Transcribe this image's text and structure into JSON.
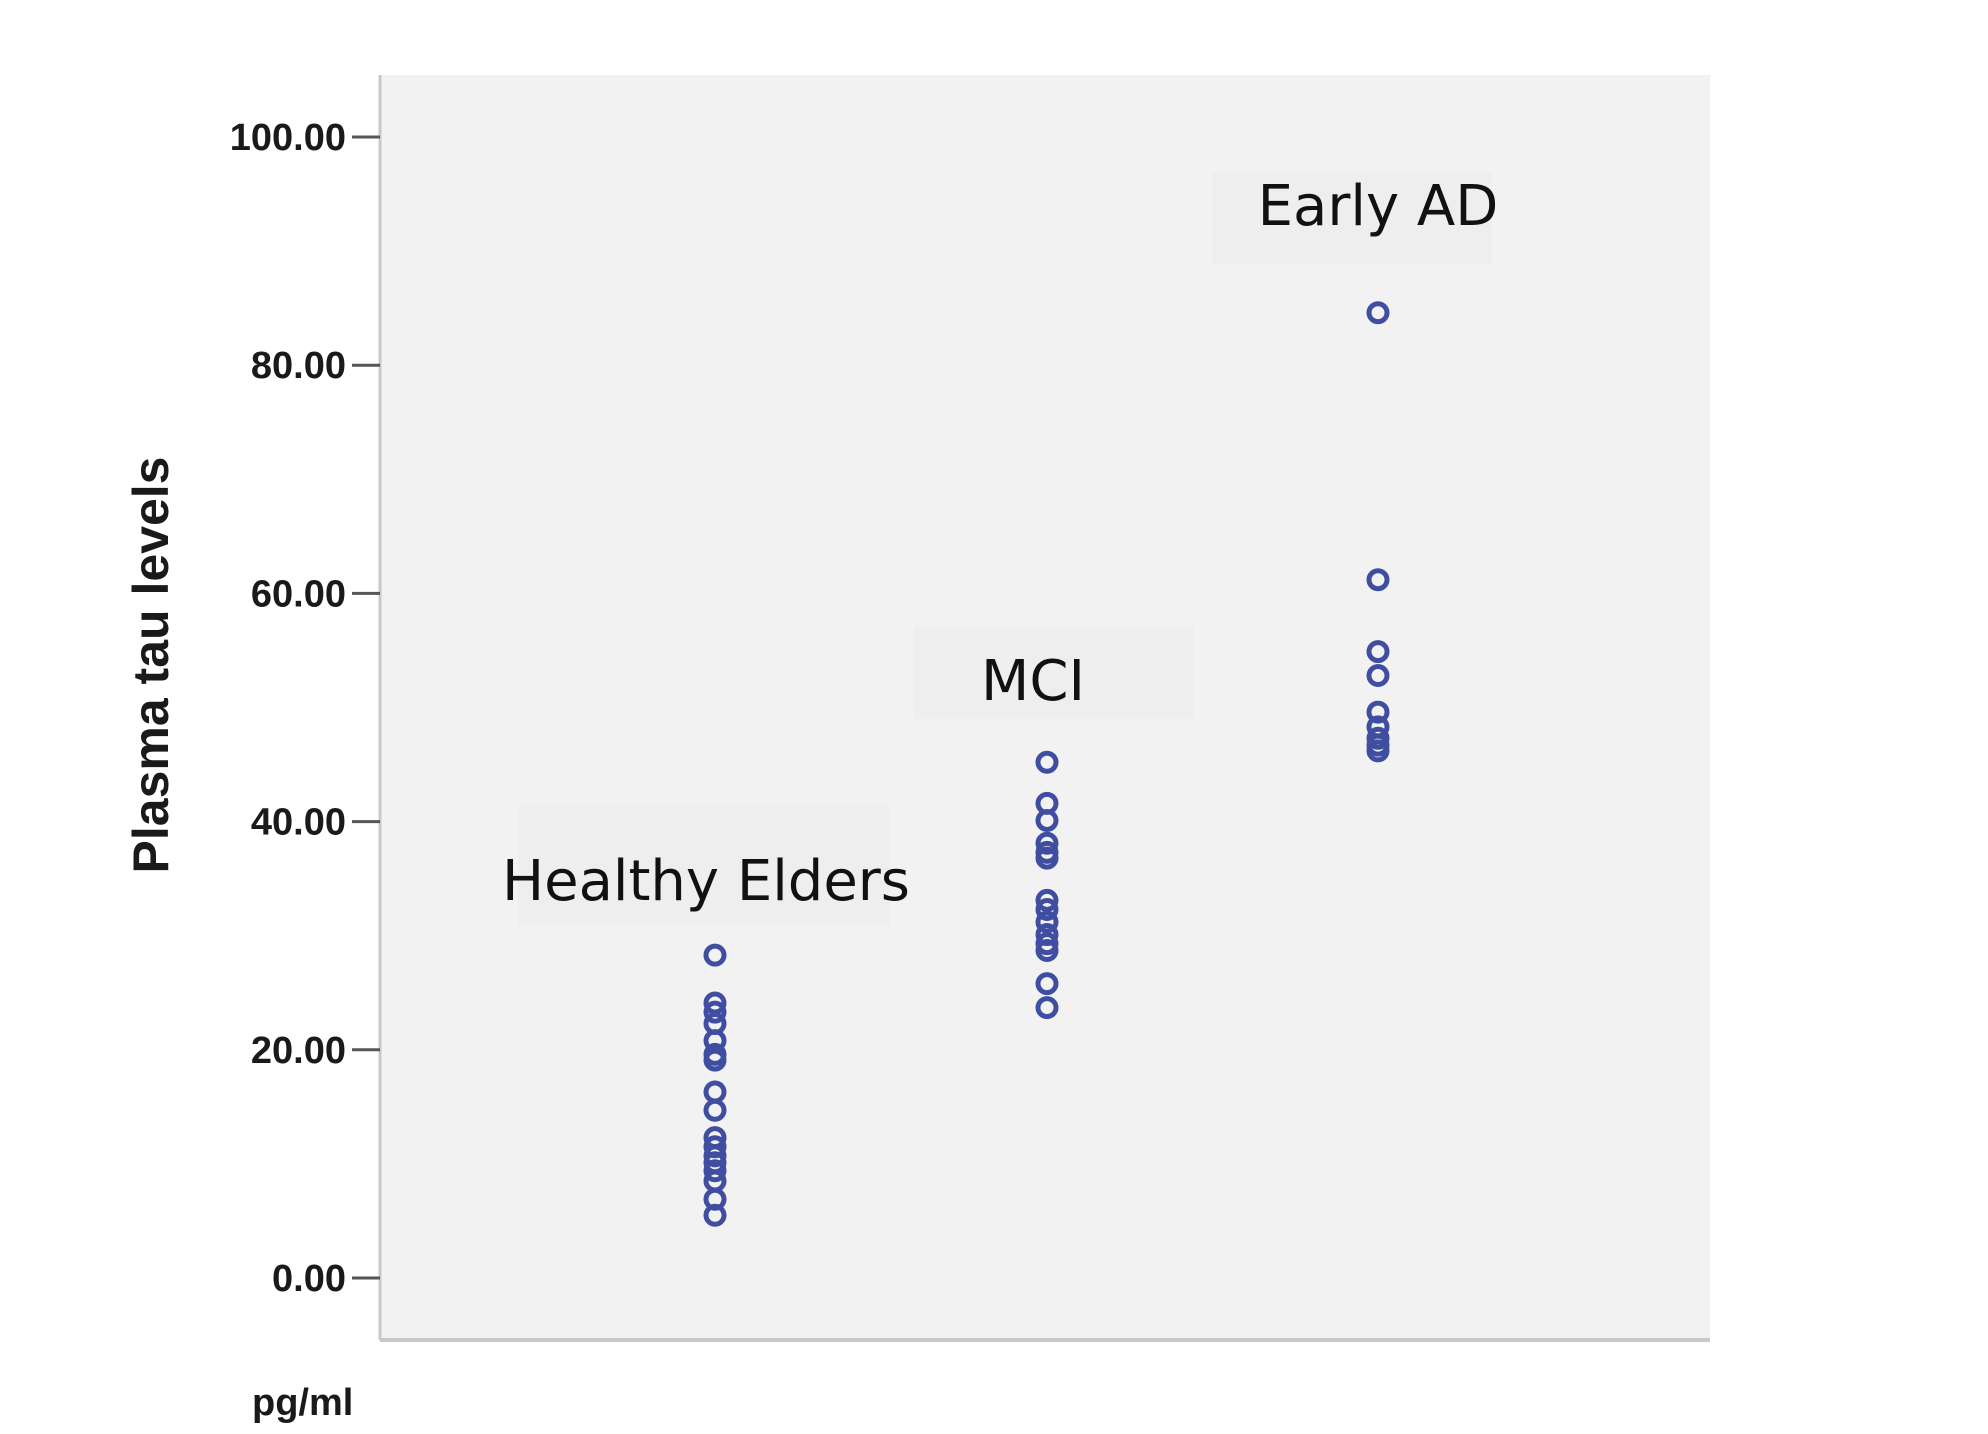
{
  "chart_data": {
    "type": "scatter",
    "xlabel": "",
    "ylabel": "Plasma tau levels",
    "unit_label": "pg/ml",
    "ylim": [
      0,
      100
    ],
    "yticks": [
      "0.00",
      "20.00",
      "40.00",
      "60.00",
      "80.00",
      "100.00"
    ],
    "grid": false,
    "background_color": "#f2f2f2",
    "marker_color": "#3f4ea0",
    "groups": [
      {
        "label": "Healthy Elders",
        "values": [
          28.3,
          24.1,
          23.3,
          22.3,
          20.8,
          19.6,
          19.1,
          16.3,
          14.7,
          12.3,
          11.5,
          10.7,
          10.1,
          9.4,
          8.5,
          6.9,
          5.5
        ]
      },
      {
        "label": "MCI",
        "values": [
          45.2,
          41.6,
          40.1,
          38.1,
          37.3,
          36.8,
          33.1,
          32.3,
          31.2,
          30.1,
          29.3,
          28.7,
          25.8,
          23.7
        ]
      },
      {
        "label": "Early AD",
        "values": [
          84.6,
          61.2,
          54.9,
          52.8,
          49.6,
          48.3,
          47.3,
          46.7,
          46.2
        ]
      }
    ]
  }
}
